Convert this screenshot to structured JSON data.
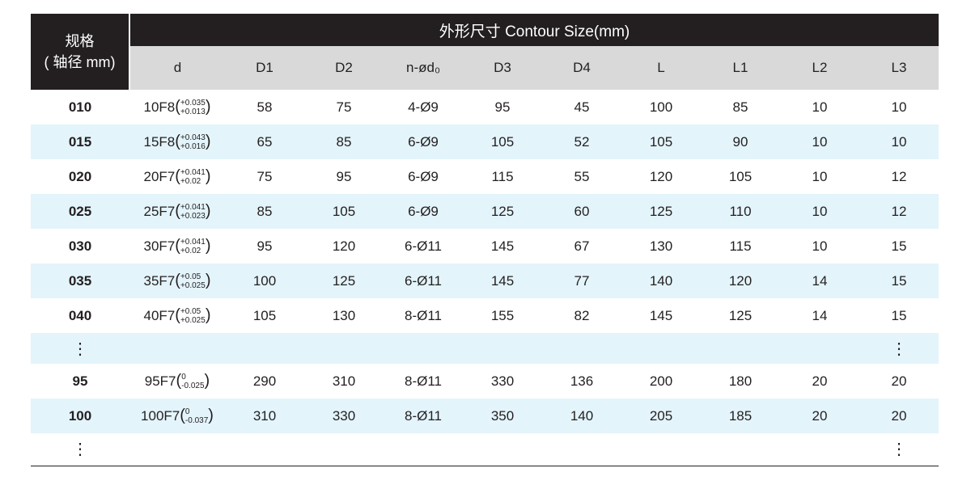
{
  "header": {
    "spec_line1": "规格",
    "spec_line2": "( 轴径 mm)",
    "group": "外形尺寸 Contour Size(mm)",
    "columns": [
      "d",
      "D1",
      "D2",
      "n-ød₀",
      "D3",
      "D4",
      "L",
      "L1",
      "L2",
      "L3"
    ]
  },
  "rows": [
    {
      "spec": "010",
      "d": "10F8",
      "upper": "+0.035",
      "lower": "+0.013",
      "vals": [
        "58",
        "75",
        "4-Ø9",
        "95",
        "45",
        "100",
        "85",
        "10",
        "10"
      ]
    },
    {
      "spec": "015",
      "d": "15F8",
      "upper": "+0.043",
      "lower": "+0.016",
      "vals": [
        "65",
        "85",
        "6-Ø9",
        "105",
        "52",
        "105",
        "90",
        "10",
        "10"
      ]
    },
    {
      "spec": "020",
      "d": "20F7",
      "upper": "+0.041",
      "lower": "+0.02",
      "vals": [
        "75",
        "95",
        "6-Ø9",
        "115",
        "55",
        "120",
        "105",
        "10",
        "12"
      ]
    },
    {
      "spec": "025",
      "d": "25F7",
      "upper": "+0.041",
      "lower": "+0.023",
      "vals": [
        "85",
        "105",
        "6-Ø9",
        "125",
        "60",
        "125",
        "110",
        "10",
        "12"
      ]
    },
    {
      "spec": "030",
      "d": "30F7",
      "upper": "+0.041",
      "lower": "+0.02",
      "vals": [
        "95",
        "120",
        "6-Ø11",
        "145",
        "67",
        "130",
        "115",
        "10",
        "15"
      ]
    },
    {
      "spec": "035",
      "d": "35F7",
      "upper": "+0.05",
      "lower": "+0.025",
      "vals": [
        "100",
        "125",
        "6-Ø11",
        "145",
        "77",
        "140",
        "120",
        "14",
        "15"
      ]
    },
    {
      "spec": "040",
      "d": "40F7",
      "upper": "+0.05",
      "lower": "+0.025",
      "vals": [
        "105",
        "130",
        "8-Ø11",
        "155",
        "82",
        "145",
        "125",
        "14",
        "15"
      ]
    },
    {
      "dots": true
    },
    {
      "spec": "95",
      "d": "95F7",
      "upper": "0",
      "lower": "-0.025",
      "vals": [
        "290",
        "310",
        "8-Ø11",
        "330",
        "136",
        "200",
        "180",
        "20",
        "20"
      ]
    },
    {
      "spec": "100",
      "d": "100F7",
      "upper": "0",
      "lower": "-0.037",
      "vals": [
        "310",
        "330",
        "8-Ø11",
        "350",
        "140",
        "205",
        "185",
        "20",
        "20"
      ]
    },
    {
      "dots": true
    }
  ],
  "ellipsis": "⋮"
}
